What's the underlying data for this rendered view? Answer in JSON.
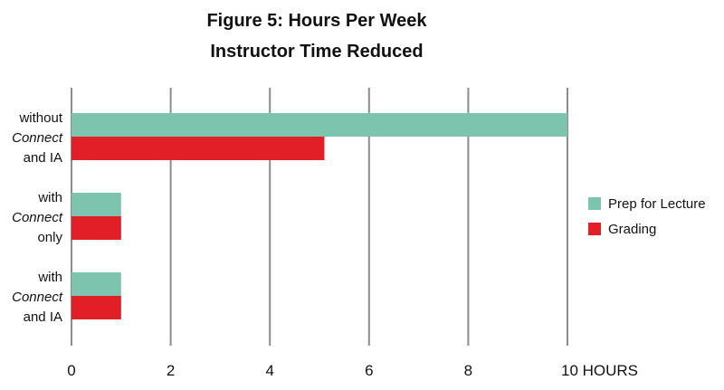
{
  "chart_data": {
    "type": "bar",
    "orientation": "horizontal",
    "title": "Figure 5: Hours Per Week",
    "subtitle": "Instructor Time Reduced",
    "categories": [
      [
        "without",
        "Connect",
        "and IA"
      ],
      [
        "with",
        "Connect",
        "only"
      ],
      [
        "with",
        "Connect",
        "and IA"
      ]
    ],
    "italic_word": "Connect",
    "series": [
      {
        "name": "Prep for Lecture",
        "color": "#7dc4ae",
        "values": [
          10,
          1,
          1
        ]
      },
      {
        "name": "Grading",
        "color": "#e21e26",
        "values": [
          5.1,
          1,
          1
        ]
      }
    ],
    "x_ticks": [
      "0",
      "2",
      "4",
      "6",
      "8",
      "10 HOURS"
    ],
    "xlim": [
      0,
      10
    ],
    "grid": true,
    "legend_position": "right"
  }
}
